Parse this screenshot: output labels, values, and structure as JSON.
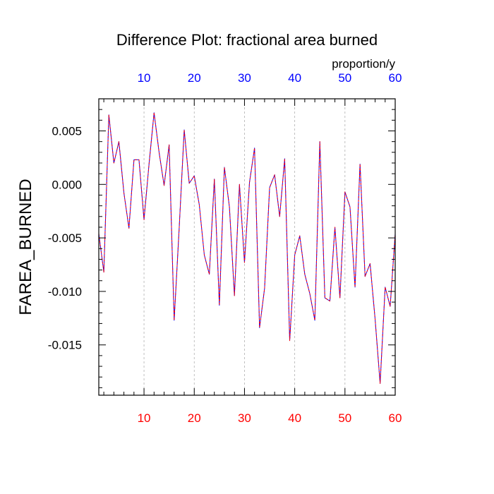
{
  "chart_data": {
    "type": "line",
    "title": "Difference Plot: fractional area burned",
    "units_label": "proportion/y",
    "ylabel": "FAREA_BURNED",
    "xlabel": "",
    "xlim": [
      1,
      60
    ],
    "ylim": [
      -0.0197,
      0.008
    ],
    "x_ticks": [
      10,
      20,
      30,
      40,
      50,
      60
    ],
    "x_tick_labels": [
      "10",
      "20",
      "30",
      "40",
      "50",
      "60"
    ],
    "y_ticks": [
      0.005,
      0.0,
      -0.005,
      -0.01,
      -0.015
    ],
    "y_tick_labels": [
      "0.005",
      "0.000",
      "-0.005",
      "-0.010",
      "-0.015"
    ],
    "grid": "vertical dashed at major x ticks",
    "colors": {
      "series_a": "#0000ff",
      "series_b": "#ff0000",
      "bottom_tick_labels": "#ff0000",
      "top_tick_labels": "#0000ff",
      "grid": "#b0b0b0",
      "axis": "#000000"
    },
    "x": [
      1,
      2,
      3,
      4,
      5,
      6,
      7,
      8,
      9,
      10,
      11,
      12,
      13,
      14,
      15,
      16,
      17,
      18,
      19,
      20,
      21,
      22,
      23,
      24,
      25,
      26,
      27,
      28,
      29,
      30,
      31,
      32,
      33,
      34,
      35,
      36,
      37,
      38,
      39,
      40,
      41,
      42,
      43,
      44,
      45,
      46,
      47,
      48,
      49,
      50,
      51,
      52,
      53,
      54,
      55,
      56,
      57,
      58,
      59,
      60
    ],
    "series": [
      {
        "values": [
          -0.0046,
          -0.0082,
          0.0065,
          0.002,
          0.004,
          -0.0008,
          -0.0041,
          0.0023,
          0.0023,
          -0.0033,
          0.0019,
          0.0067,
          0.003,
          -0.0001,
          0.0037,
          -0.0127,
          -0.0041,
          0.0051,
          0.0001,
          0.0008,
          -0.0019,
          -0.0066,
          -0.0084,
          0.0005,
          -0.0113,
          0.0016,
          -0.0021,
          -0.0104,
          0.0,
          -0.0073,
          0.0002,
          0.0034,
          -0.0134,
          -0.0097,
          -0.0003,
          0.0009,
          -0.003,
          0.0024,
          -0.0146,
          -0.0066,
          -0.0048,
          -0.0084,
          -0.0102,
          -0.0127,
          0.004,
          -0.0106,
          -0.0109,
          -0.004,
          -0.0106,
          -0.0007,
          -0.0021,
          -0.0096,
          0.0019,
          -0.0086,
          -0.0074,
          -0.0126,
          -0.0186,
          -0.0096,
          -0.0114,
          -0.0046
        ]
      },
      {
        "values": [
          -0.0046,
          -0.0082,
          0.0065,
          0.002,
          0.004,
          -0.0008,
          -0.0041,
          0.0023,
          0.0023,
          -0.0033,
          0.0019,
          0.0067,
          0.003,
          -0.0001,
          0.0037,
          -0.0127,
          -0.0041,
          0.0051,
          0.0001,
          0.0008,
          -0.0019,
          -0.0066,
          -0.0084,
          0.0005,
          -0.0113,
          0.0016,
          -0.0021,
          -0.0104,
          0.0,
          -0.0073,
          0.0002,
          0.0034,
          -0.0134,
          -0.0097,
          -0.0003,
          0.0009,
          -0.003,
          0.0024,
          -0.0146,
          -0.0066,
          -0.0048,
          -0.0084,
          -0.0102,
          -0.0127,
          0.004,
          -0.0106,
          -0.0109,
          -0.004,
          -0.0106,
          -0.0007,
          -0.0021,
          -0.0096,
          0.0019,
          -0.0086,
          -0.0074,
          -0.0126,
          -0.0186,
          -0.0096,
          -0.0114,
          -0.0046
        ]
      }
    ]
  }
}
